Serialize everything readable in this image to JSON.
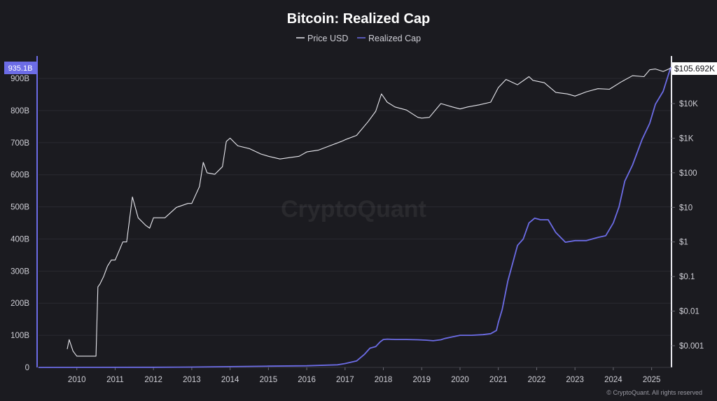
{
  "chart_data": {
    "type": "line",
    "title": "Bitcoin: Realized Cap",
    "legend": [
      {
        "label": "Price USD",
        "color": "#e8e8ee"
      },
      {
        "label": "Realized Cap",
        "color": "#6c6ce6"
      }
    ],
    "x_ticks": [
      "2010",
      "2011",
      "2012",
      "2013",
      "2014",
      "2015",
      "2016",
      "2017",
      "2018",
      "2019",
      "2020",
      "2021",
      "2022",
      "2023",
      "2024",
      "2025"
    ],
    "x_range": [
      2009.0,
      2025.5
    ],
    "left_axis": {
      "ticks": [
        "0",
        "100B",
        "200B",
        "300B",
        "400B",
        "500B",
        "600B",
        "700B",
        "800B",
        "900B"
      ],
      "ylim": [
        0,
        935.1
      ],
      "unit": "B USD",
      "color": "#6c6ce6"
    },
    "right_axis": {
      "ticks": [
        "$0.001",
        "$0.01",
        "$0.1",
        "$1",
        "$10",
        "$100",
        "$1K",
        "$10K"
      ],
      "scale": "log",
      "color": "#e8e8ee"
    },
    "last_values": {
      "left_label": "935.1B",
      "right_label": "$105.692K"
    },
    "series": [
      {
        "name": "Realized Cap",
        "axis": "left",
        "color": "#6c6ce6",
        "x": [
          2009.0,
          2012.0,
          2013.0,
          2014.0,
          2015.0,
          2016.0,
          2016.8,
          2017.0,
          2017.3,
          2017.5,
          2017.65,
          2017.8,
          2017.92,
          2018.0,
          2018.1,
          2018.3,
          2018.6,
          2018.9,
          2019.1,
          2019.3,
          2019.5,
          2019.6,
          2019.8,
          2020.0,
          2020.3,
          2020.6,
          2020.8,
          2020.95,
          2021.0,
          2021.1,
          2021.25,
          2021.5,
          2021.65,
          2021.8,
          2021.95,
          2022.1,
          2022.3,
          2022.5,
          2022.75,
          2023.0,
          2023.3,
          2023.6,
          2023.8,
          2024.0,
          2024.15,
          2024.3,
          2024.5,
          2024.75,
          2024.95,
          2025.1,
          2025.3,
          2025.5
        ],
        "y": [
          0,
          0.5,
          1,
          2.5,
          4,
          5,
          8,
          12,
          20,
          40,
          60,
          65,
          80,
          87,
          88,
          87,
          87,
          86,
          85,
          83,
          86,
          90,
          95,
          100,
          100,
          102,
          105,
          115,
          140,
          180,
          270,
          380,
          400,
          450,
          465,
          460,
          460,
          420,
          390,
          395,
          395,
          405,
          410,
          450,
          500,
          580,
          630,
          710,
          760,
          820,
          860,
          935.1
        ]
      },
      {
        "name": "Price USD",
        "axis": "right",
        "color": "#e8e8ee",
        "x": [
          2009.75,
          2009.8,
          2009.9,
          2010.0,
          2010.5,
          2010.55,
          2010.6,
          2010.7,
          2010.8,
          2010.9,
          2011.0,
          2011.2,
          2011.3,
          2011.45,
          2011.6,
          2011.8,
          2011.9,
          2012.0,
          2012.3,
          2012.6,
          2012.9,
          2013.0,
          2013.2,
          2013.3,
          2013.4,
          2013.6,
          2013.8,
          2013.9,
          2014.0,
          2014.2,
          2014.5,
          2014.8,
          2015.0,
          2015.3,
          2015.6,
          2015.8,
          2016.0,
          2016.3,
          2016.6,
          2016.9,
          2017.0,
          2017.3,
          2017.6,
          2017.8,
          2017.95,
          2018.1,
          2018.3,
          2018.6,
          2018.9,
          2019.0,
          2019.2,
          2019.5,
          2019.8,
          2020.0,
          2020.2,
          2020.5,
          2020.8,
          2021.0,
          2021.2,
          2021.5,
          2021.8,
          2021.9,
          2022.2,
          2022.5,
          2022.8,
          2023.0,
          2023.3,
          2023.6,
          2023.9,
          2024.2,
          2024.5,
          2024.8,
          2024.95,
          2025.1,
          2025.3,
          2025.5
        ],
        "y": [
          0.0008,
          0.0015,
          0.0007,
          0.0005,
          0.0005,
          0.05,
          0.06,
          0.1,
          0.2,
          0.3,
          0.3,
          1.0,
          1.0,
          20,
          5,
          3,
          2.5,
          5,
          5,
          10,
          13,
          13,
          40,
          200,
          100,
          90,
          150,
          800,
          1000,
          600,
          500,
          350,
          300,
          250,
          280,
          300,
          400,
          450,
          600,
          800,
          900,
          1200,
          3000,
          6000,
          19000,
          11000,
          8000,
          6500,
          4000,
          3800,
          4000,
          10000,
          8000,
          7000,
          8000,
          9200,
          11000,
          29000,
          50000,
          35000,
          60000,
          47000,
          40000,
          21000,
          19000,
          16500,
          22000,
          27000,
          26000,
          42000,
          64000,
          60000,
          95000,
          100000,
          85000,
          105692
        ]
      }
    ],
    "watermark": "CryptoQuant",
    "footer": "© CryptoQuant. All rights reserved"
  }
}
